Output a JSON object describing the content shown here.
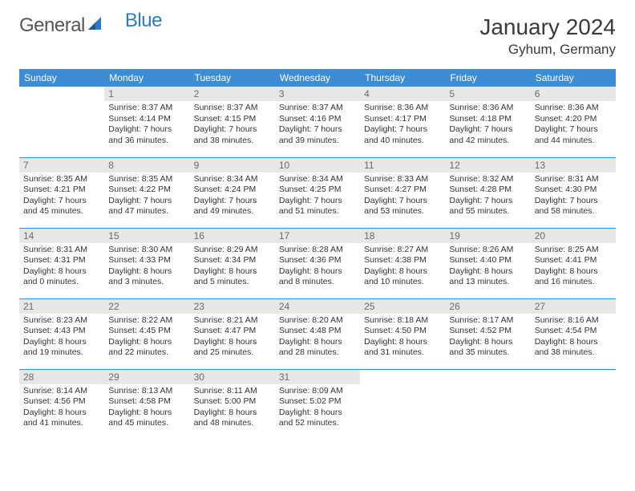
{
  "brand": {
    "part1": "General",
    "part2": "Blue"
  },
  "title": "January 2024",
  "location": "Gyhum, Germany",
  "colors": {
    "header_bg": "#3d8cd6",
    "header_text": "#ffffff",
    "daynum_bg": "#e7e7e7",
    "daynum_text": "#6a6a6a",
    "body_text": "#333333",
    "rule": "#3d8cd6",
    "brand_gray": "#555555",
    "brand_blue": "#2a7cc7"
  },
  "weekdays": [
    "Sunday",
    "Monday",
    "Tuesday",
    "Wednesday",
    "Thursday",
    "Friday",
    "Saturday"
  ],
  "weeks": [
    [
      {
        "empty": true
      },
      {
        "n": "1",
        "sr": "8:37 AM",
        "ss": "4:14 PM",
        "dl": "7 hours and 36 minutes."
      },
      {
        "n": "2",
        "sr": "8:37 AM",
        "ss": "4:15 PM",
        "dl": "7 hours and 38 minutes."
      },
      {
        "n": "3",
        "sr": "8:37 AM",
        "ss": "4:16 PM",
        "dl": "7 hours and 39 minutes."
      },
      {
        "n": "4",
        "sr": "8:36 AM",
        "ss": "4:17 PM",
        "dl": "7 hours and 40 minutes."
      },
      {
        "n": "5",
        "sr": "8:36 AM",
        "ss": "4:18 PM",
        "dl": "7 hours and 42 minutes."
      },
      {
        "n": "6",
        "sr": "8:36 AM",
        "ss": "4:20 PM",
        "dl": "7 hours and 44 minutes."
      }
    ],
    [
      {
        "n": "7",
        "sr": "8:35 AM",
        "ss": "4:21 PM",
        "dl": "7 hours and 45 minutes."
      },
      {
        "n": "8",
        "sr": "8:35 AM",
        "ss": "4:22 PM",
        "dl": "7 hours and 47 minutes."
      },
      {
        "n": "9",
        "sr": "8:34 AM",
        "ss": "4:24 PM",
        "dl": "7 hours and 49 minutes."
      },
      {
        "n": "10",
        "sr": "8:34 AM",
        "ss": "4:25 PM",
        "dl": "7 hours and 51 minutes."
      },
      {
        "n": "11",
        "sr": "8:33 AM",
        "ss": "4:27 PM",
        "dl": "7 hours and 53 minutes."
      },
      {
        "n": "12",
        "sr": "8:32 AM",
        "ss": "4:28 PM",
        "dl": "7 hours and 55 minutes."
      },
      {
        "n": "13",
        "sr": "8:31 AM",
        "ss": "4:30 PM",
        "dl": "7 hours and 58 minutes."
      }
    ],
    [
      {
        "n": "14",
        "sr": "8:31 AM",
        "ss": "4:31 PM",
        "dl": "8 hours and 0 minutes."
      },
      {
        "n": "15",
        "sr": "8:30 AM",
        "ss": "4:33 PM",
        "dl": "8 hours and 3 minutes."
      },
      {
        "n": "16",
        "sr": "8:29 AM",
        "ss": "4:34 PM",
        "dl": "8 hours and 5 minutes."
      },
      {
        "n": "17",
        "sr": "8:28 AM",
        "ss": "4:36 PM",
        "dl": "8 hours and 8 minutes."
      },
      {
        "n": "18",
        "sr": "8:27 AM",
        "ss": "4:38 PM",
        "dl": "8 hours and 10 minutes."
      },
      {
        "n": "19",
        "sr": "8:26 AM",
        "ss": "4:40 PM",
        "dl": "8 hours and 13 minutes."
      },
      {
        "n": "20",
        "sr": "8:25 AM",
        "ss": "4:41 PM",
        "dl": "8 hours and 16 minutes."
      }
    ],
    [
      {
        "n": "21",
        "sr": "8:23 AM",
        "ss": "4:43 PM",
        "dl": "8 hours and 19 minutes."
      },
      {
        "n": "22",
        "sr": "8:22 AM",
        "ss": "4:45 PM",
        "dl": "8 hours and 22 minutes."
      },
      {
        "n": "23",
        "sr": "8:21 AM",
        "ss": "4:47 PM",
        "dl": "8 hours and 25 minutes."
      },
      {
        "n": "24",
        "sr": "8:20 AM",
        "ss": "4:48 PM",
        "dl": "8 hours and 28 minutes."
      },
      {
        "n": "25",
        "sr": "8:18 AM",
        "ss": "4:50 PM",
        "dl": "8 hours and 31 minutes."
      },
      {
        "n": "26",
        "sr": "8:17 AM",
        "ss": "4:52 PM",
        "dl": "8 hours and 35 minutes."
      },
      {
        "n": "27",
        "sr": "8:16 AM",
        "ss": "4:54 PM",
        "dl": "8 hours and 38 minutes."
      }
    ],
    [
      {
        "n": "28",
        "sr": "8:14 AM",
        "ss": "4:56 PM",
        "dl": "8 hours and 41 minutes."
      },
      {
        "n": "29",
        "sr": "8:13 AM",
        "ss": "4:58 PM",
        "dl": "8 hours and 45 minutes."
      },
      {
        "n": "30",
        "sr": "8:11 AM",
        "ss": "5:00 PM",
        "dl": "8 hours and 48 minutes."
      },
      {
        "n": "31",
        "sr": "8:09 AM",
        "ss": "5:02 PM",
        "dl": "8 hours and 52 minutes."
      },
      {
        "empty": true
      },
      {
        "empty": true
      },
      {
        "empty": true
      }
    ]
  ],
  "labels": {
    "sunrise": "Sunrise:",
    "sunset": "Sunset:",
    "daylight": "Daylight:"
  }
}
